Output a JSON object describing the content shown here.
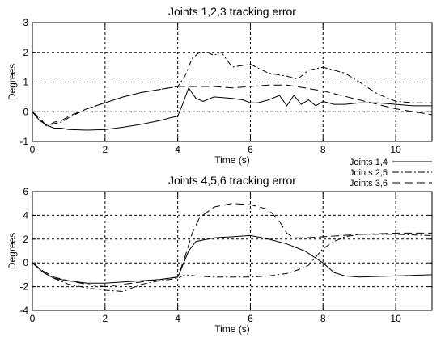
{
  "chart_data": [
    {
      "type": "line",
      "title": "Joints 1,2,3 tracking error",
      "xlabel": "Time (s)",
      "ylabel": "Degrees",
      "xlim": [
        0,
        11
      ],
      "ylim": [
        -1,
        3
      ],
      "xticks": [
        0,
        2,
        4,
        6,
        8,
        10
      ],
      "yticks": [
        -1,
        0,
        1,
        2,
        3
      ],
      "grid": true,
      "series": [
        {
          "name": "Joints 1,4",
          "style": "solid",
          "x": [
            0,
            0.2,
            0.4,
            0.6,
            0.8,
            1.0,
            1.5,
            2.0,
            2.5,
            3.0,
            3.5,
            3.8,
            4.0,
            4.15,
            4.3,
            4.5,
            4.7,
            5.0,
            5.5,
            5.8,
            6.0,
            6.2,
            6.5,
            6.8,
            7.0,
            7.2,
            7.4,
            7.6,
            7.8,
            8.0,
            8.3,
            8.6,
            9.0,
            9.5,
            10.0,
            10.5,
            11.0
          ],
          "y": [
            0,
            -0.3,
            -0.45,
            -0.55,
            -0.55,
            -0.6,
            -0.62,
            -0.6,
            -0.52,
            -0.42,
            -0.3,
            -0.2,
            -0.15,
            0.3,
            0.8,
            0.45,
            0.35,
            0.5,
            0.45,
            0.4,
            0.3,
            0.3,
            0.4,
            0.55,
            0.2,
            0.55,
            0.25,
            0.4,
            0.2,
            0.35,
            0.25,
            0.25,
            0.3,
            0.3,
            0.25,
            0.2,
            0.2
          ]
        },
        {
          "name": "Joints 2,5",
          "style": "dash-dot",
          "x": [
            0,
            0.2,
            0.4,
            0.6,
            0.8,
            1.0,
            1.5,
            2.0,
            2.5,
            3.0,
            3.5,
            4.0,
            4.2,
            4.4,
            4.6,
            4.8,
            5.0,
            5.2,
            5.5,
            6.0,
            6.5,
            7.0,
            7.3,
            7.6,
            8.0,
            8.3,
            8.6,
            9.0,
            9.5,
            10.0,
            10.5,
            11.0
          ],
          "y": [
            0,
            -0.2,
            -0.5,
            -0.4,
            -0.35,
            -0.2,
            0.1,
            0.3,
            0.5,
            0.65,
            0.75,
            0.85,
            1.2,
            1.8,
            2.0,
            2.0,
            1.9,
            2.0,
            1.5,
            1.6,
            1.3,
            1.2,
            1.1,
            1.4,
            1.5,
            1.4,
            1.3,
            1.0,
            0.6,
            0.35,
            0.3,
            0.3
          ]
        },
        {
          "name": "Joints 3,6",
          "style": "dashed",
          "x": [
            0,
            0.2,
            0.4,
            0.6,
            0.8,
            1.0,
            1.5,
            2.0,
            2.5,
            3.0,
            3.5,
            4.0,
            4.5,
            5.0,
            5.5,
            6.0,
            6.5,
            7.0,
            7.5,
            8.0,
            8.5,
            9.0,
            9.5,
            10.0,
            10.5,
            11.0
          ],
          "y": [
            0,
            -0.25,
            -0.5,
            -0.35,
            -0.3,
            -0.15,
            0.1,
            0.3,
            0.5,
            0.65,
            0.75,
            0.85,
            0.85,
            0.85,
            0.8,
            0.85,
            0.9,
            0.9,
            0.8,
            0.7,
            0.55,
            0.4,
            0.25,
            0.1,
            0.0,
            -0.1
          ]
        }
      ]
    },
    {
      "type": "line",
      "title": "Joints 4,5,6 tracking error",
      "xlabel": "Time (s)",
      "ylabel": "Degrees",
      "xlim": [
        0,
        11
      ],
      "ylim": [
        -4,
        6
      ],
      "xticks": [
        0,
        2,
        4,
        6,
        8,
        10
      ],
      "yticks": [
        -4,
        -2,
        0,
        2,
        4,
        6
      ],
      "grid": true,
      "series": [
        {
          "name": "Joints 1,4",
          "style": "solid",
          "x": [
            0,
            0.3,
            0.6,
            1.0,
            1.5,
            2.0,
            2.5,
            3.0,
            3.5,
            4.0,
            4.1,
            4.3,
            4.5,
            5.0,
            5.5,
            6.0,
            6.5,
            7.0,
            7.5,
            8.0,
            8.3,
            8.6,
            9.0,
            10.0,
            11.0
          ],
          "y": [
            0,
            -0.8,
            -1.3,
            -1.5,
            -1.7,
            -1.7,
            -1.6,
            -1.5,
            -1.4,
            -1.2,
            -0.5,
            1.0,
            1.8,
            2.1,
            2.2,
            2.3,
            2.0,
            1.6,
            1.0,
            0.0,
            -0.8,
            -1.1,
            -1.2,
            -1.1,
            -1.0
          ]
        },
        {
          "name": "Joints 2,5",
          "style": "dash-dot",
          "x": [
            0,
            0.3,
            0.6,
            1.0,
            1.5,
            2.0,
            2.5,
            3.0,
            3.5,
            4.0,
            4.2,
            4.5,
            5.0,
            5.5,
            6.0,
            6.5,
            7.0,
            7.3,
            7.6,
            7.8,
            8.0,
            8.3,
            8.6,
            9.0,
            10.0,
            11.0
          ],
          "y": [
            0,
            -0.8,
            -1.3,
            -1.8,
            -2.1,
            -2.3,
            -2.4,
            -1.8,
            -1.5,
            -1.3,
            -1.0,
            -1.1,
            -1.2,
            -1.2,
            -1.2,
            -1.1,
            -0.9,
            -0.6,
            -0.2,
            0.5,
            1.2,
            1.8,
            2.2,
            2.4,
            2.4,
            2.3
          ]
        },
        {
          "name": "Joints 3,6",
          "style": "dashed",
          "x": [
            0,
            0.3,
            0.6,
            1.0,
            1.5,
            2.0,
            2.5,
            3.0,
            3.5,
            4.0,
            4.2,
            4.4,
            4.6,
            5.0,
            5.5,
            6.0,
            6.5,
            6.8,
            7.0,
            7.2,
            7.5,
            8.0,
            8.5,
            9.0,
            10.0,
            11.0
          ],
          "y": [
            0,
            -0.7,
            -1.2,
            -1.5,
            -1.8,
            -2.0,
            -1.8,
            -1.6,
            -1.4,
            -1.2,
            0.5,
            2.5,
            3.8,
            4.7,
            5.0,
            4.9,
            4.5,
            3.5,
            2.5,
            2.1,
            2.1,
            2.2,
            2.3,
            2.4,
            2.5,
            2.5
          ]
        }
      ]
    }
  ]
}
